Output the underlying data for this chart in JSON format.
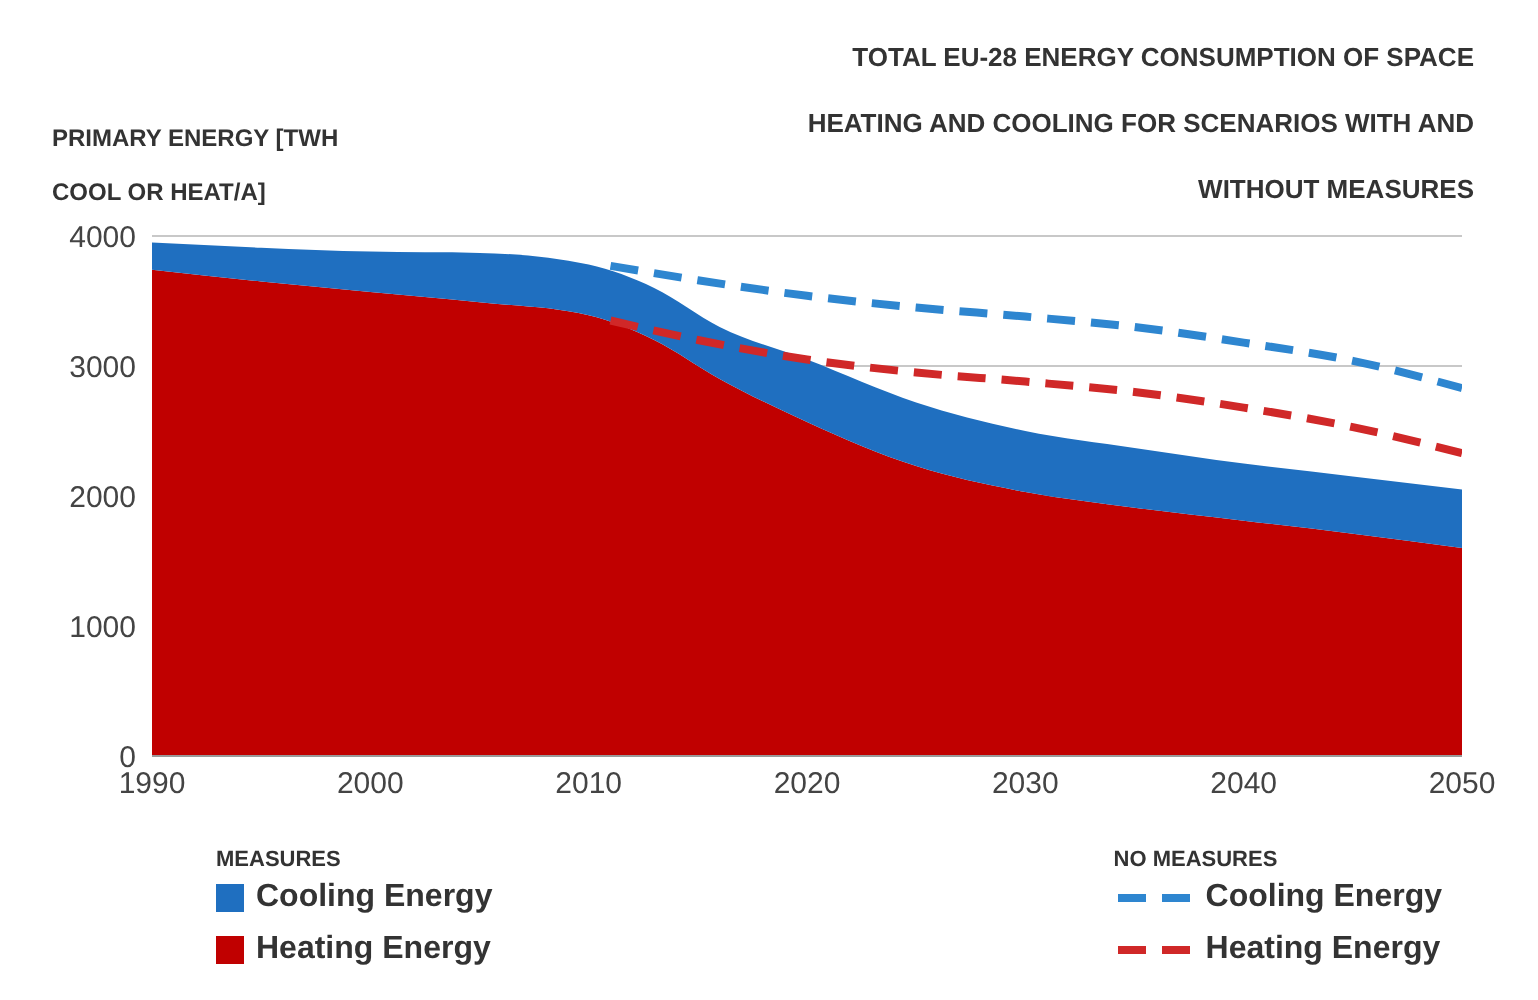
{
  "chart_data": {
    "type": "area",
    "title": "TOTAL EU-28 ENERGY CONSUMPTION OF SPACE HEATING AND COOLING FOR SCENARIOS WITH AND WITHOUT MEASURES",
    "ylabel": "PRIMARY ENERGY [TWH COOL OR HEAT/A]",
    "stacked": true,
    "xlim": [
      1990,
      2050
    ],
    "xticks": [
      1990,
      2000,
      2010,
      2020,
      2030,
      2040,
      2050
    ],
    "ylim": [
      0,
      4000
    ],
    "yticks": [
      0,
      1000,
      2000,
      3000,
      4000
    ],
    "grid": "y",
    "legend": "bottom",
    "annotations": [
      "MEASURES",
      "NO MEASURES"
    ],
    "series": [
      {
        "name": "Heating Energy",
        "color": "#c00000",
        "x": [
          1990,
          1995,
          2000,
          2005,
          2010,
          2013,
          2016,
          2020,
          2025,
          2030,
          2035,
          2040,
          2045,
          2050
        ],
        "values": [
          3740,
          3650,
          3570,
          3490,
          3390,
          3200,
          2900,
          2570,
          2230,
          2030,
          1910,
          1810,
          1710,
          1600
        ]
      },
      {
        "name": "Cooling Energy",
        "color": "#1f6fc0",
        "x": [
          1990,
          1995,
          2000,
          2005,
          2010,
          2013,
          2016,
          2020,
          2025,
          2030,
          2035,
          2040,
          2045,
          2050
        ],
        "values": [
          210,
          260,
          310,
          380,
          390,
          400,
          400,
          480,
          490,
          470,
          460,
          440,
          440,
          450
        ]
      },
      {
        "name": "Cooling Energy",
        "type": "line",
        "line_style": "dashed",
        "color": "#2e86d0",
        "x": [
          2011,
          2015,
          2020,
          2025,
          2030,
          2035,
          2040,
          2045,
          2050
        ],
        "values": [
          3770,
          3660,
          3540,
          3450,
          3380,
          3300,
          3180,
          3040,
          2830
        ]
      },
      {
        "name": "Heating Energy",
        "type": "line",
        "line_style": "dashed",
        "color": "#d02828",
        "x": [
          2011,
          2015,
          2020,
          2025,
          2030,
          2035,
          2040,
          2045,
          2050
        ],
        "values": [
          3350,
          3200,
          3050,
          2950,
          2880,
          2800,
          2680,
          2530,
          2330
        ]
      }
    ]
  }
}
